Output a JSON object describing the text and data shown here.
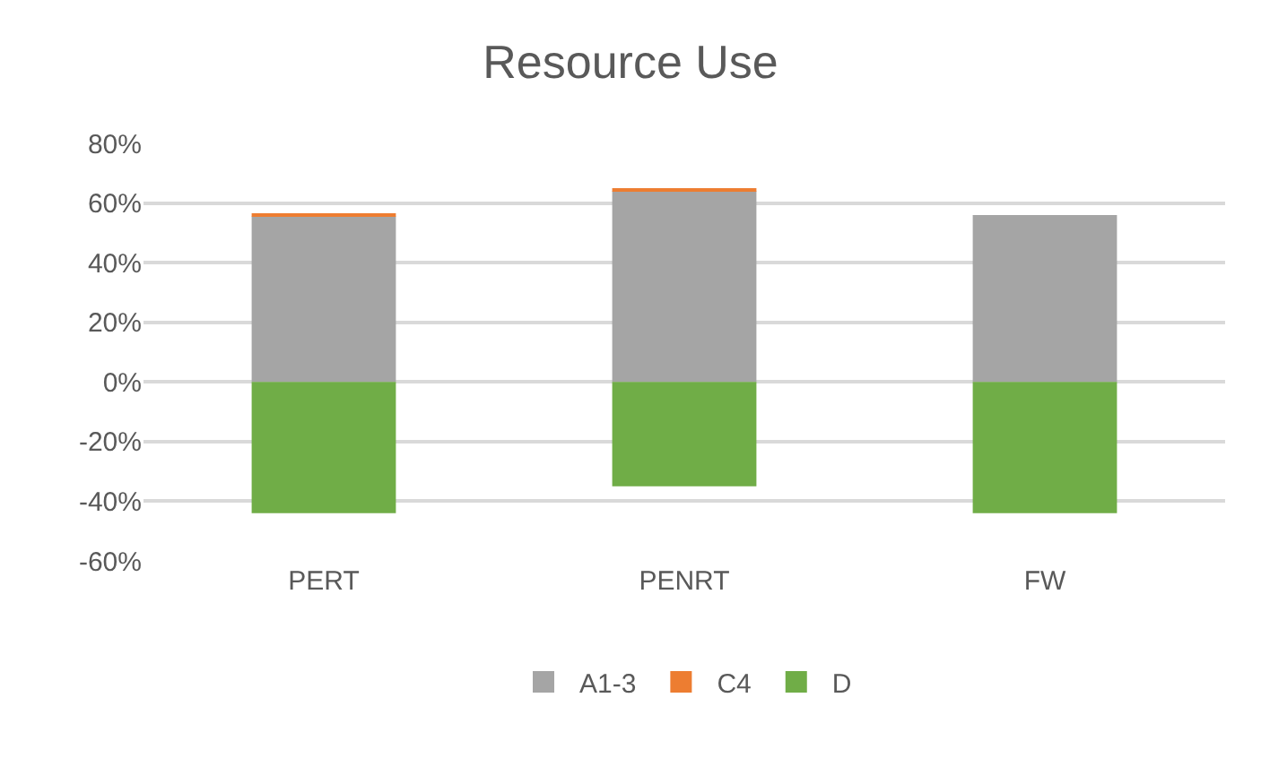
{
  "chart_data": {
    "type": "bar",
    "title": "Resource Use",
    "categories": [
      "PERT",
      "PENRT",
      "FW"
    ],
    "stacked": true,
    "series": [
      {
        "name": "A1-3",
        "color": "#a5a5a5",
        "values": [
          55.5,
          64,
          56
        ]
      },
      {
        "name": "C4",
        "color": "#ed7d31",
        "values": [
          1,
          1,
          0
        ]
      },
      {
        "name": "D",
        "color": "#70ad47",
        "values": [
          -44,
          -35,
          -44
        ]
      }
    ],
    "ylim": [
      -60,
      80
    ],
    "yticks": [
      {
        "value": -60,
        "label": "-60%"
      },
      {
        "value": -40,
        "label": "-40%"
      },
      {
        "value": -20,
        "label": "-20%"
      },
      {
        "value": 0,
        "label": "0%"
      },
      {
        "value": 20,
        "label": "20%"
      },
      {
        "value": 40,
        "label": "40%"
      },
      {
        "value": 60,
        "label": "60%"
      },
      {
        "value": 80,
        "label": "80%"
      }
    ],
    "grid": "y",
    "legend": "bottom"
  }
}
